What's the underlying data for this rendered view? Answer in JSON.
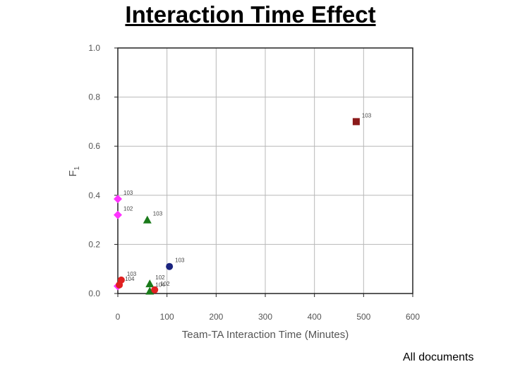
{
  "slide": {
    "title": "Interaction Time Effect",
    "footnote": "All documents"
  },
  "chart_data": {
    "type": "scatter",
    "title": "",
    "xlabel": "Team-TA Interaction Time (Minutes)",
    "ylabel": "F",
    "ylabel_subscript": "1",
    "xlim": [
      0,
      600
    ],
    "ylim": [
      0.0,
      1.0
    ],
    "xticks": [
      0,
      100,
      200,
      300,
      400,
      500,
      600
    ],
    "yticks": [
      "0.0",
      "0.2",
      "0.4",
      "0.6",
      "0.8",
      "1.0"
    ],
    "grid": true,
    "series": [
      {
        "color": "#8b1a1a",
        "marker": "square",
        "points": [
          {
            "x": 485,
            "y": 0.7,
            "label": "103"
          }
        ]
      },
      {
        "color": "#ff33ff",
        "marker": "diamond",
        "points": [
          {
            "x": 0,
            "y": 0.385,
            "label": "103"
          },
          {
            "x": 0,
            "y": 0.32,
            "label": "102"
          },
          {
            "x": 0,
            "y": 0.03,
            "label": ""
          }
        ]
      },
      {
        "color": "#1a7a1a",
        "marker": "triangle",
        "points": [
          {
            "x": 60,
            "y": 0.3,
            "label": "103"
          },
          {
            "x": 65,
            "y": 0.04,
            "label": "102"
          },
          {
            "x": 65,
            "y": 0.01,
            "label": "104"
          }
        ]
      },
      {
        "color": "#1a237e",
        "marker": "circle",
        "points": [
          {
            "x": 105,
            "y": 0.11,
            "label": "103"
          }
        ]
      },
      {
        "color": "#e02020",
        "marker": "circle",
        "points": [
          {
            "x": 7,
            "y": 0.055,
            "label": "103"
          },
          {
            "x": 3,
            "y": 0.035,
            "label": "104"
          },
          {
            "x": 75,
            "y": 0.015,
            "label": "102"
          }
        ]
      }
    ]
  }
}
